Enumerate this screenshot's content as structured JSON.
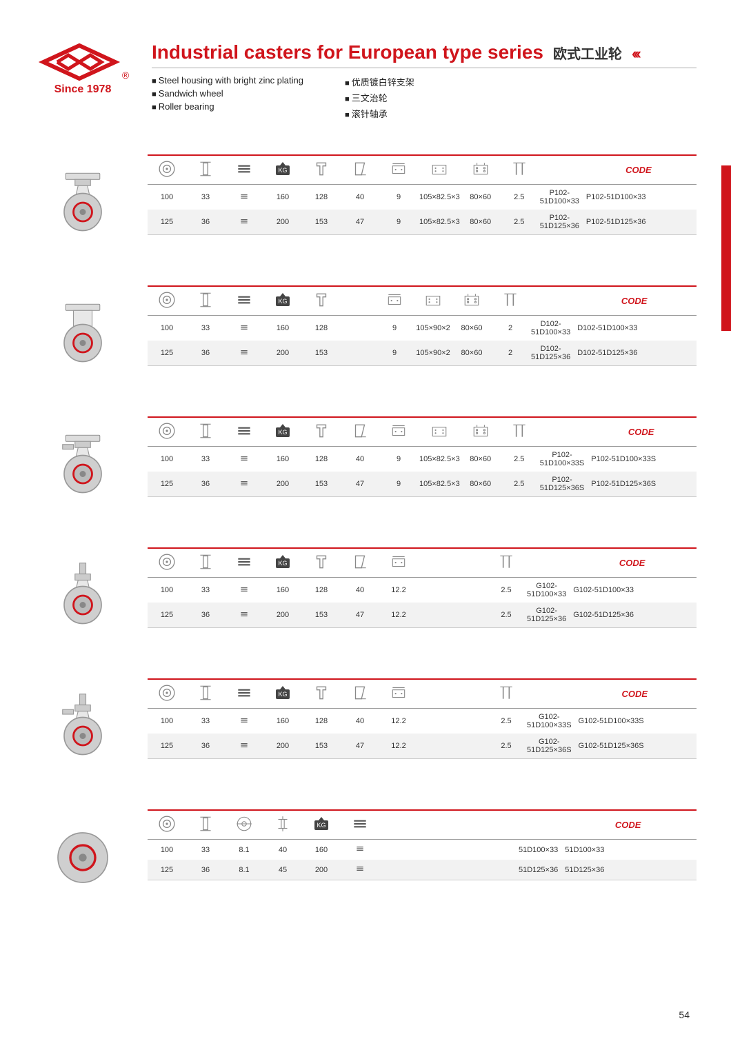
{
  "colors": {
    "accent": "#d0151c",
    "text": "#333333",
    "grid": "#cccccc",
    "altRow": "#f2f2f2",
    "bg": "#ffffff"
  },
  "logo": {
    "since": "Since 1978",
    "reg": "®"
  },
  "title": {
    "en": "Industrial casters for European type series",
    "zh": "欧式工业轮",
    "chev": "‹‹‹"
  },
  "features_en": [
    "Steel housing with bright zinc plating",
    "Sandwich wheel",
    "Roller bearing"
  ],
  "features_zh": [
    "优质镀白锌支架",
    "三文治轮",
    "滚针轴承"
  ],
  "code_label": "CODE",
  "kg_label": "KG",
  "sections": [
    {
      "cols": [
        "wheel",
        "width",
        "tread",
        "kg",
        "swivel_h",
        "offset",
        "bolt",
        "plate",
        "holes",
        "track",
        "code"
      ],
      "rows": [
        {
          "wheel": "100",
          "width": "33",
          "tread": "t",
          "kg": "160",
          "swivel_h": "128",
          "offset": "40",
          "bolt": "9",
          "plate": "105×82.5×3",
          "holes": "80×60",
          "track": "2.5",
          "code": "P102-51D100×33"
        },
        {
          "wheel": "125",
          "width": "36",
          "tread": "t",
          "kg": "200",
          "swivel_h": "153",
          "offset": "47",
          "bolt": "9",
          "plate": "105×82.5×3",
          "holes": "80×60",
          "track": "2.5",
          "code": "P102-51D125×36"
        }
      ]
    },
    {
      "cols": [
        "wheel",
        "width",
        "tread",
        "kg",
        "swivel_h",
        "gap",
        "bolt",
        "plate",
        "holes",
        "track",
        "code"
      ],
      "rows": [
        {
          "wheel": "100",
          "width": "33",
          "tread": "t",
          "kg": "160",
          "swivel_h": "128",
          "gap": "",
          "bolt": "9",
          "plate": "105×90×2",
          "holes": "80×60",
          "track": "2",
          "code": "D102-51D100×33"
        },
        {
          "wheel": "125",
          "width": "36",
          "tread": "t",
          "kg": "200",
          "swivel_h": "153",
          "gap": "",
          "bolt": "9",
          "plate": "105×90×2",
          "holes": "80×60",
          "track": "2",
          "code": "D102-51D125×36"
        }
      ]
    },
    {
      "cols": [
        "wheel",
        "width",
        "tread",
        "kg",
        "swivel_h",
        "offset",
        "bolt",
        "plate",
        "holes",
        "track",
        "code"
      ],
      "rows": [
        {
          "wheel": "100",
          "width": "33",
          "tread": "t",
          "kg": "160",
          "swivel_h": "128",
          "offset": "40",
          "bolt": "9",
          "plate": "105×82.5×3",
          "holes": "80×60",
          "track": "2.5",
          "code": "P102-51D100×33S"
        },
        {
          "wheel": "125",
          "width": "36",
          "tread": "t",
          "kg": "200",
          "swivel_h": "153",
          "offset": "47",
          "bolt": "9",
          "plate": "105×82.5×3",
          "holes": "80×60",
          "track": "2.5",
          "code": "P102-51D125×36S"
        }
      ]
    },
    {
      "cols": [
        "wheel",
        "width",
        "tread",
        "kg",
        "swivel_h",
        "offset",
        "bolt",
        "gap1",
        "gap2",
        "track",
        "code"
      ],
      "rows": [
        {
          "wheel": "100",
          "width": "33",
          "tread": "t",
          "kg": "160",
          "swivel_h": "128",
          "offset": "40",
          "bolt": "12.2",
          "gap1": "",
          "gap2": "",
          "track": "2.5",
          "code": "G102-51D100×33"
        },
        {
          "wheel": "125",
          "width": "36",
          "tread": "t",
          "kg": "200",
          "swivel_h": "153",
          "offset": "47",
          "bolt": "12.2",
          "gap1": "",
          "gap2": "",
          "track": "2.5",
          "code": "G102-51D125×36"
        }
      ]
    },
    {
      "cols": [
        "wheel",
        "width",
        "tread",
        "kg",
        "swivel_h",
        "offset",
        "bolt",
        "gap1",
        "gap2",
        "track",
        "code"
      ],
      "rows": [
        {
          "wheel": "100",
          "width": "33",
          "tread": "t",
          "kg": "160",
          "swivel_h": "128",
          "offset": "40",
          "bolt": "12.2",
          "gap1": "",
          "gap2": "",
          "track": "2.5",
          "code": "G102-51D100×33S"
        },
        {
          "wheel": "125",
          "width": "36",
          "tread": "t",
          "kg": "200",
          "swivel_h": "153",
          "offset": "47",
          "bolt": "12.2",
          "gap1": "",
          "gap2": "",
          "track": "2.5",
          "code": "G102-51D125×36S"
        }
      ]
    },
    {
      "cols": [
        "wheel",
        "width",
        "bore",
        "hub",
        "kg",
        "tread",
        "gap1",
        "gap2",
        "gap3",
        "gap4",
        "code"
      ],
      "rows": [
        {
          "wheel": "100",
          "width": "33",
          "bore": "8.1",
          "hub": "40",
          "kg": "160",
          "tread": "t",
          "gap1": "",
          "gap2": "",
          "gap3": "",
          "gap4": "",
          "code": "51D100×33"
        },
        {
          "wheel": "125",
          "width": "36",
          "bore": "8.1",
          "hub": "45",
          "kg": "200",
          "tread": "t",
          "gap1": "",
          "gap2": "",
          "gap3": "",
          "gap4": "",
          "code": "51D125×36"
        }
      ]
    }
  ],
  "page_number": "54",
  "icons": {
    "wheel": "wheel-diam-icon",
    "width": "tread-width-icon",
    "tread": "tread-pattern-icon",
    "kg": "load-kg-icon",
    "swivel_h": "swivel-height-icon",
    "offset": "offset-icon",
    "bolt": "bolt-hole-icon",
    "plate": "plate-dim-icon",
    "holes": "hole-spacing-icon",
    "track": "track-width-icon",
    "bore": "bore-diam-icon",
    "hub": "hub-length-icon",
    "gap": "",
    "gap1": "",
    "gap2": "",
    "gap3": "",
    "gap4": ""
  }
}
